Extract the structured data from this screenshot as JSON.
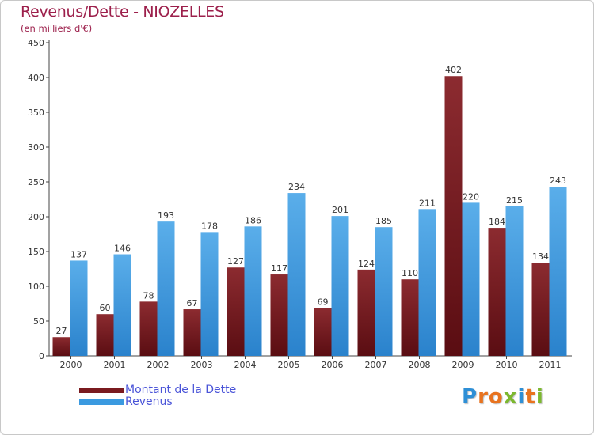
{
  "title": "Revenus/Dette - NIOZELLES",
  "subtitle": "(en milliers d'€)",
  "logo": {
    "letters": [
      {
        "ch": "P",
        "color": "#2e8fd6"
      },
      {
        "ch": "r",
        "color": "#e8731f"
      },
      {
        "ch": "o",
        "color": "#e8731f"
      },
      {
        "ch": "x",
        "color": "#7cb82f"
      },
      {
        "ch": "i",
        "color": "#2e8fd6"
      },
      {
        "ch": "t",
        "color": "#e8731f"
      },
      {
        "ch": "i",
        "color": "#7cb82f"
      }
    ]
  },
  "colors": {
    "dette": "#7a1a1f",
    "revenus": "#3b9ae0",
    "axis": "#444444",
    "grid": "#cccccc",
    "title": "#9c1f4b",
    "legend_text": "#4a54d8"
  },
  "chart_data": {
    "type": "bar",
    "title": "Revenus/Dette - NIOZELLES",
    "ylabel": "(en milliers d'€)",
    "xlabel": "",
    "ylim": [
      0,
      450
    ],
    "yticks": [
      0,
      50,
      100,
      150,
      200,
      250,
      300,
      350,
      400,
      450
    ],
    "grid": false,
    "legend_position": "bottom-left",
    "categories": [
      "2000",
      "2001",
      "2002",
      "2003",
      "2004",
      "2005",
      "2006",
      "2007",
      "2008",
      "2009",
      "2010",
      "2011"
    ],
    "series": [
      {
        "name": "Montant de la Dette",
        "key": "dette",
        "values": [
          27,
          60,
          78,
          67,
          127,
          117,
          69,
          124,
          110,
          402,
          184,
          134
        ]
      },
      {
        "name": "Revenus",
        "key": "revenus",
        "values": [
          137,
          146,
          193,
          178,
          186,
          234,
          201,
          185,
          211,
          220,
          215,
          243
        ]
      }
    ]
  }
}
